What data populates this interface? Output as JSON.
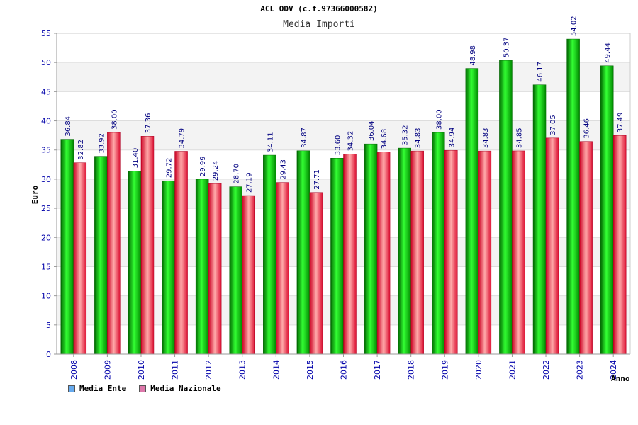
{
  "chart_data": {
    "type": "bar",
    "title": "ACL ODV (c.f.97366000582)",
    "subtitle": "Media Importi",
    "ylabel": "Euro",
    "xlabel": "Anno",
    "ylim": [
      0,
      55
    ],
    "yticks": [
      0,
      5,
      10,
      15,
      20,
      25,
      30,
      35,
      40,
      45,
      50,
      55
    ],
    "grid": true,
    "legend_position": "bottom-left",
    "categories": [
      "2008",
      "2009",
      "2010",
      "2011",
      "2012",
      "2013",
      "2014",
      "2015",
      "2016",
      "2017",
      "2018",
      "2019",
      "2020",
      "2021",
      "2022",
      "2023",
      "2024"
    ],
    "series": [
      {
        "name": "Media Ente",
        "color": "#00cc00",
        "legend_color": "#66aaee",
        "values": [
          36.84,
          33.92,
          31.4,
          29.72,
          29.99,
          28.7,
          34.11,
          34.87,
          33.6,
          36.04,
          35.32,
          38.0,
          48.98,
          50.37,
          46.17,
          54.02,
          49.44
        ],
        "labels": [
          "36.84",
          "33.92",
          "31.40",
          "29.72",
          "29.99",
          "28.70",
          "34.11",
          "34.87",
          "33.60",
          "36.04",
          "35.32",
          "38.00",
          "48.98",
          "50.37",
          "46.17",
          "54.02",
          "49.44"
        ]
      },
      {
        "name": "Media Nazionale",
        "color": "#ee3344",
        "legend_color": "#dd77aa",
        "values": [
          32.82,
          38.0,
          37.36,
          34.79,
          29.24,
          27.19,
          29.43,
          27.71,
          34.32,
          34.68,
          34.83,
          34.94,
          34.83,
          34.85,
          37.05,
          36.46,
          37.49
        ],
        "labels": [
          "32.82",
          "38.00",
          "37.36",
          "34.79",
          "29.24",
          "27.19",
          "29.43",
          "27.71",
          "34.32",
          "34.68",
          "34.83",
          "34.94",
          "34.83",
          "34.85",
          "37.05",
          "36.46",
          "37.49"
        ]
      }
    ]
  }
}
